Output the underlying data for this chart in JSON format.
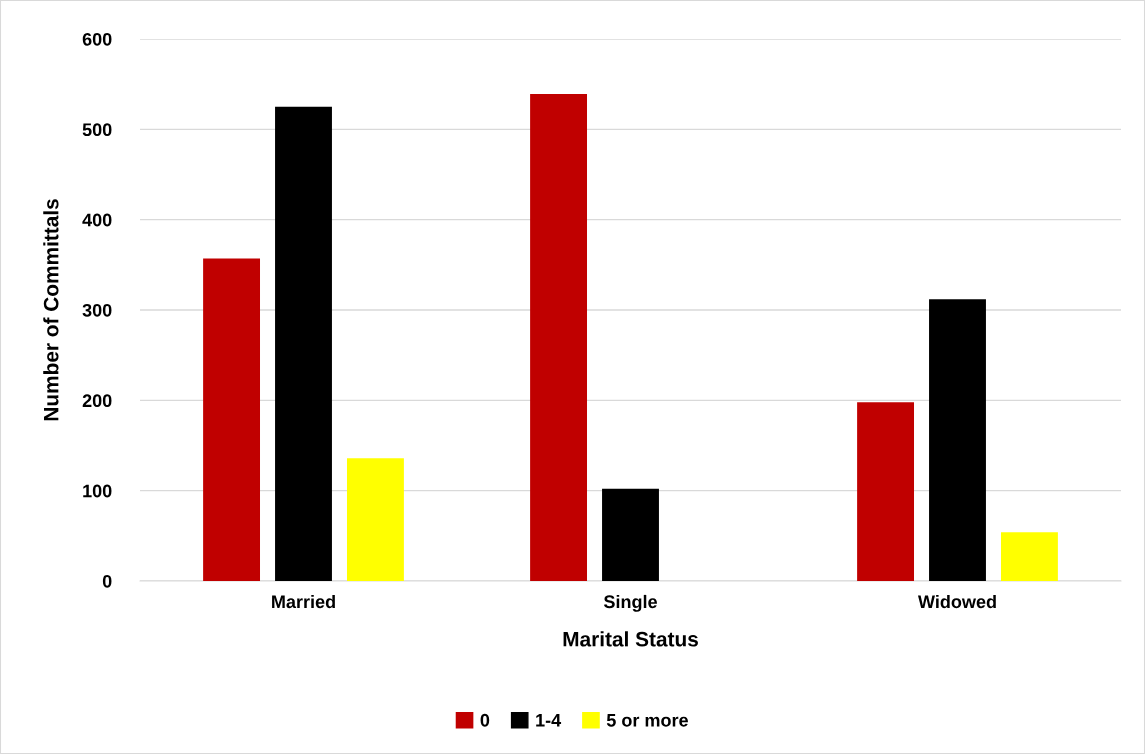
{
  "chart_data": {
    "type": "bar",
    "xlabel": "Marital Status",
    "ylabel": "Number of Committals",
    "categories": [
      "Married",
      "Single",
      "Widowed"
    ],
    "series": [
      {
        "name": "0",
        "color": "#c00000",
        "values": [
          357,
          539,
          198
        ]
      },
      {
        "name": "1-4",
        "color": "#000000",
        "values": [
          525,
          102,
          312
        ]
      },
      {
        "name": "5 or more",
        "color": "#ffff00",
        "values": [
          136,
          0,
          54
        ]
      }
    ],
    "ylim": [
      0,
      600
    ],
    "yticks": [
      0,
      100,
      200,
      300,
      400,
      500,
      600
    ],
    "grid": "y",
    "legend": "bottom"
  }
}
